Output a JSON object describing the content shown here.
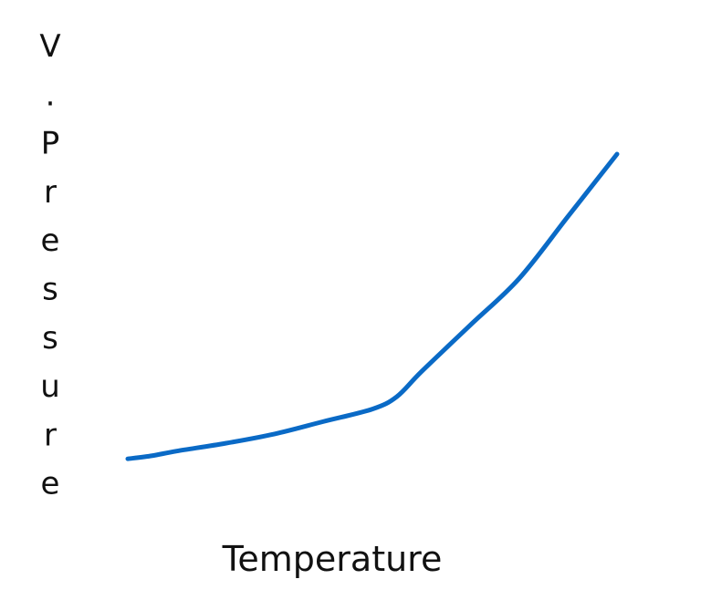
{
  "chart_data": {
    "type": "line",
    "title": "",
    "xlabel": "Temperature",
    "ylabel": "V.Pressure",
    "ylabel_chars": [
      "V",
      ".",
      "P",
      "r",
      "e",
      "s",
      "s",
      "u",
      "r",
      "e"
    ],
    "x": [
      0,
      0.05,
      0.1,
      0.2,
      0.3,
      0.4,
      0.5,
      0.55,
      0.6,
      0.7,
      0.8,
      0.9,
      1.0
    ],
    "y": [
      0.02,
      0.03,
      0.045,
      0.07,
      0.1,
      0.14,
      0.18,
      0.22,
      0.3,
      0.45,
      0.6,
      0.8,
      1.0
    ],
    "show_ticks": false,
    "grid": false,
    "colors": {
      "line": "#0a6ac6",
      "y_axis_top": "#2aa0b8",
      "y_axis_bottom": "#b6d98a",
      "x_axis_left": "#3a9fb8",
      "x_axis_mid": "#9a4a9a",
      "x_axis_right": "#b24fa8"
    }
  }
}
